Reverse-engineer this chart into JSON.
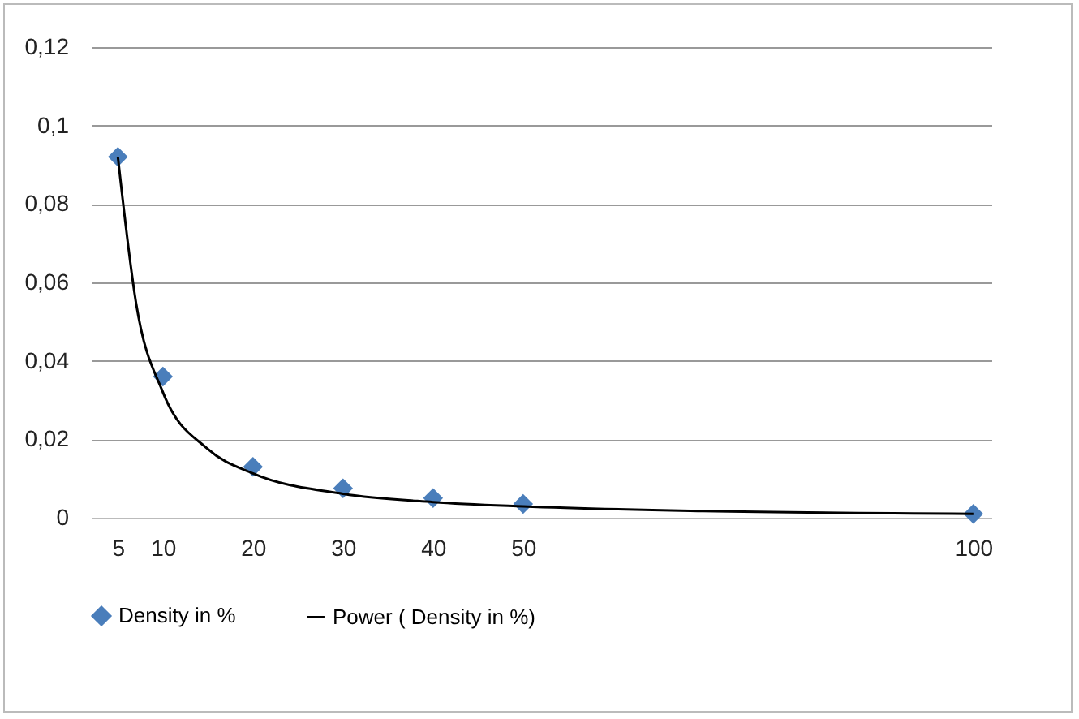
{
  "chart_data": {
    "type": "scatter",
    "marker": "diamond",
    "grid": "y",
    "legend": "bottom",
    "xlim": [
      2,
      102
    ],
    "xticks": [
      5,
      10,
      20,
      30,
      40,
      50,
      100
    ],
    "ylim": [
      0,
      0.12
    ],
    "yticks": [
      0,
      {
        "value": 0.02,
        "label": "0,02"
      },
      {
        "value": 0.04,
        "label": "0,04"
      },
      {
        "value": 0.06,
        "label": "0,06"
      },
      {
        "value": 0.08,
        "label": "0,08"
      },
      {
        "value": 0.1,
        "label": "0,1"
      },
      {
        "value": 0.12,
        "label": "0,12"
      }
    ],
    "series": [
      {
        "name": "Density in %",
        "color": "#4a7ebb",
        "x": [
          5,
          10,
          20,
          30,
          40,
          50,
          100
        ],
        "values": [
          0.092,
          0.036,
          0.013,
          0.0075,
          0.005,
          0.0035,
          0.001
        ]
      },
      {
        "name": "Power ( Density in %)",
        "type": "line",
        "marker": "none",
        "color": "#000000",
        "x": [
          5,
          7,
          10,
          15,
          20,
          30,
          40,
          50,
          70,
          100
        ],
        "values": [
          0.092,
          0.055,
          0.032,
          0.0175,
          0.0113,
          0.0061,
          0.004,
          0.0029,
          0.0017,
          0.001
        ]
      }
    ]
  }
}
